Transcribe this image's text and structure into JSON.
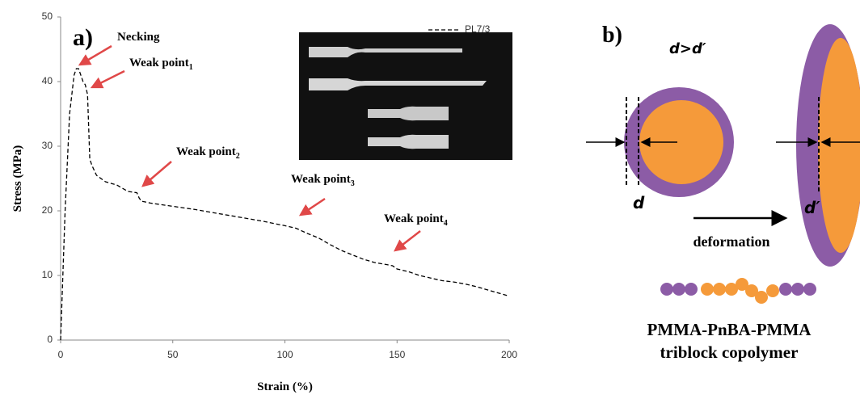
{
  "chart_data": {
    "type": "line",
    "panel_label": "a)",
    "xlabel": "Strain (%)",
    "ylabel": "Stress (MPa)",
    "x": [
      0,
      2,
      4,
      6,
      7,
      8,
      9,
      10,
      11,
      12,
      12.5,
      13,
      14,
      16,
      20,
      25,
      30,
      34,
      35,
      36,
      40,
      50,
      60,
      70,
      80,
      90,
      100,
      105,
      110,
      115,
      120,
      125,
      130,
      135,
      140,
      145,
      148,
      150,
      155,
      160,
      165,
      170,
      175,
      180,
      185,
      190,
      195,
      200
    ],
    "series": [
      {
        "name": "PL7/3",
        "color": "#000000",
        "values": [
          0,
          20,
          35,
          41,
          42,
          42,
          41,
          40,
          39.5,
          38,
          33,
          28,
          27,
          25.5,
          24.5,
          24,
          23,
          22.8,
          22,
          21.5,
          21.2,
          20.7,
          20.2,
          19.6,
          19,
          18.4,
          17.7,
          17.3,
          16.5,
          15.8,
          14.8,
          13.9,
          13.2,
          12.5,
          12,
          11.7,
          11.5,
          11,
          10.6,
          10,
          9.6,
          9.2,
          9,
          8.7,
          8.3,
          7.8,
          7.3,
          6.8
        ]
      }
    ],
    "xlim": [
      0,
      200
    ],
    "xticks": [
      0,
      50,
      100,
      150,
      200
    ],
    "ylim": [
      0,
      50
    ],
    "yticks": [
      0,
      10,
      20,
      30,
      40,
      50
    ],
    "grid": false,
    "legend": "upper right",
    "annotations": [
      {
        "label": "Necking"
      },
      {
        "label": "Weak point",
        "sub": "1"
      },
      {
        "label": "Weak point",
        "sub": "2"
      },
      {
        "label": "Weak point",
        "sub": "3"
      },
      {
        "label": "Weak point",
        "sub": "4"
      }
    ]
  },
  "diagram": {
    "panel_label": "b)",
    "relation": "d>d′",
    "d": "d",
    "d_prime": "d′",
    "arrow_label": "deformation",
    "polymer": "PMMA-PnBA-PMMA",
    "polymer_type": "triblock copolymer"
  }
}
